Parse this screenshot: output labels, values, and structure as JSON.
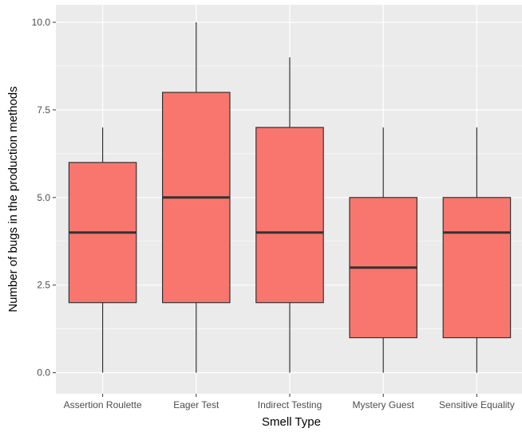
{
  "chart_data": {
    "type": "boxplot",
    "xlabel": "Smell Type",
    "ylabel": "Number of bugs in the production methods",
    "ylim": [
      -0.6,
      10.5
    ],
    "yticks": [
      0.0,
      2.5,
      5.0,
      7.5,
      10.0
    ],
    "ytick_labels": [
      "0.0",
      "2.5",
      "5.0",
      "7.5",
      "10.0"
    ],
    "grid": true,
    "categories": [
      "Assertion Roulette",
      "Eager Test",
      "Indirect Testing",
      "Mystery Guest",
      "Sensitive Equality"
    ],
    "boxes": [
      {
        "category": "Assertion Roulette",
        "min": 0,
        "q1": 2,
        "median": 4,
        "q3": 6,
        "max": 7
      },
      {
        "category": "Eager Test",
        "min": 0,
        "q1": 2,
        "median": 5,
        "q3": 8,
        "max": 10
      },
      {
        "category": "Indirect Testing",
        "min": 0,
        "q1": 2,
        "median": 4,
        "q3": 7,
        "max": 9
      },
      {
        "category": "Mystery Guest",
        "min": 0,
        "q1": 1,
        "median": 3,
        "q3": 5,
        "max": 7
      },
      {
        "category": "Sensitive Equality",
        "min": 0,
        "q1": 1,
        "median": 4,
        "q3": 5,
        "max": 7
      }
    ],
    "colors": {
      "box_fill": "#F8766D",
      "box_stroke": "#333333",
      "panel_background": "#EBEBEB",
      "grid_major": "#FFFFFF"
    }
  }
}
